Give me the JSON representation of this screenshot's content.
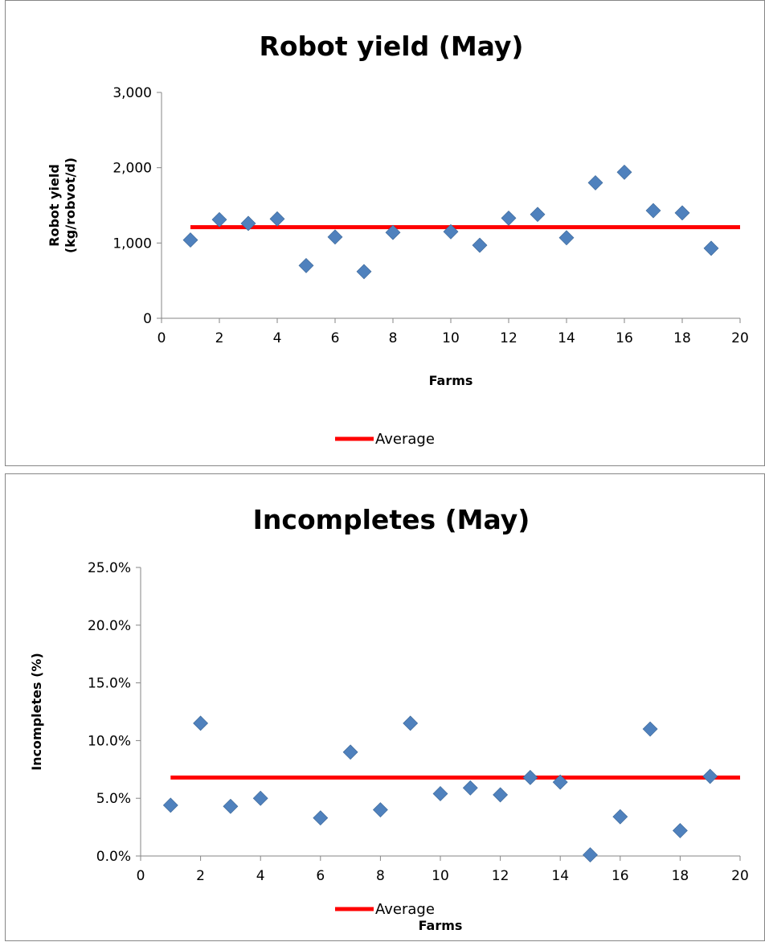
{
  "chart_data": [
    {
      "type": "scatter",
      "title": "Robot yield (May)",
      "xlabel": "Farms",
      "ylabel": [
        "Robot yield",
        "(kg/robvot/d)"
      ],
      "xlim": [
        0,
        20
      ],
      "ylim": [
        0,
        3000
      ],
      "xticks": [
        "0",
        "2",
        "4",
        "6",
        "8",
        "10",
        "12",
        "14",
        "16",
        "18",
        "20"
      ],
      "yticks": [
        "0",
        "1,000",
        "2,000",
        "3,000"
      ],
      "grid": false,
      "series": [
        {
          "marker": "diamond",
          "color": "#4f81bd",
          "x": [
            1,
            2,
            3,
            4,
            5,
            6,
            7,
            8,
            10,
            11,
            12,
            13,
            14,
            15,
            16,
            17,
            18,
            19
          ],
          "y": [
            1040,
            1310,
            1260,
            1320,
            700,
            1080,
            620,
            1140,
            1150,
            970,
            1330,
            1380,
            1070,
            1800,
            1940,
            1430,
            1400,
            930
          ]
        },
        {
          "name": "Average",
          "type": "line",
          "color": "#ff0000",
          "x": [
            1,
            20
          ],
          "y": [
            1210,
            1210
          ]
        }
      ],
      "legend": "bottom"
    },
    {
      "type": "scatter",
      "title": "Incompletes (May)",
      "xlabel": "Farms",
      "ylabel": [
        "Incompletes (%)"
      ],
      "xlim": [
        0,
        20
      ],
      "ylim": [
        0,
        25
      ],
      "xticks": [
        "0",
        "2",
        "4",
        "6",
        "8",
        "10",
        "12",
        "14",
        "16",
        "18",
        "20"
      ],
      "yticks": [
        "0.0%",
        "5.0%",
        "10.0%",
        "15.0%",
        "20.0%",
        "25.0%"
      ],
      "grid": false,
      "series": [
        {
          "marker": "diamond",
          "color": "#4f81bd",
          "x": [
            1,
            2,
            3,
            4,
            6,
            7,
            8,
            9,
            10,
            11,
            12,
            13,
            14,
            15,
            16,
            17,
            18,
            19
          ],
          "y": [
            4.4,
            11.5,
            4.3,
            5.0,
            3.3,
            9.0,
            4.0,
            11.5,
            5.4,
            5.9,
            5.3,
            6.8,
            6.4,
            0.1,
            3.4,
            11.0,
            2.2,
            6.9
          ]
        },
        {
          "name": "Average",
          "type": "line",
          "color": "#ff0000",
          "x": [
            1,
            20
          ],
          "y": [
            6.8,
            6.8
          ]
        }
      ],
      "legend": "bottom"
    }
  ]
}
